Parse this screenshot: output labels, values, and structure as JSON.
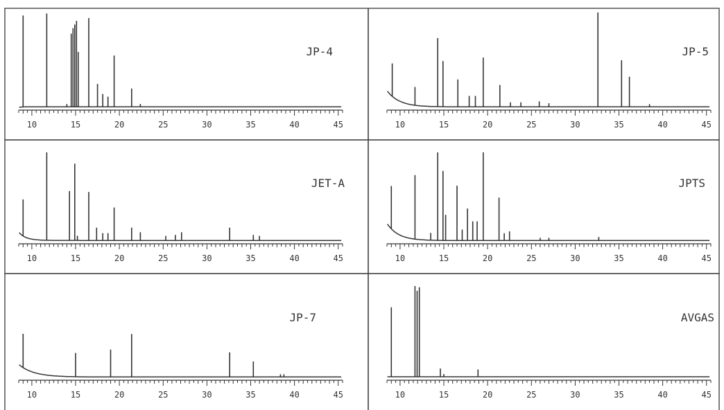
{
  "figure": {
    "colors": {
      "ink": "#333333",
      "frame": "#444444",
      "background": "#ffffff"
    }
  },
  "chart_data": [
    {
      "type": "line",
      "label": "JP-4",
      "xlim": [
        8.5,
        45.5
      ],
      "x_ticks": [
        10,
        15,
        20,
        25,
        30,
        35,
        40,
        45
      ],
      "tick_labels": [
        "10",
        "15",
        "20",
        "25",
        "30",
        "35",
        "40",
        "45"
      ],
      "baseline": {
        "start": 1.8,
        "end": 2.8,
        "decay": 0.6
      },
      "peaks": [
        {
          "x": 9.0,
          "y": 100
        },
        {
          "x": 11.7,
          "y": 102
        },
        {
          "x": 14.0,
          "y": 3
        },
        {
          "x": 14.5,
          "y": 80
        },
        {
          "x": 14.7,
          "y": 86
        },
        {
          "x": 14.9,
          "y": 90
        },
        {
          "x": 15.1,
          "y": 94
        },
        {
          "x": 15.3,
          "y": 60
        },
        {
          "x": 16.5,
          "y": 97
        },
        {
          "x": 17.5,
          "y": 25
        },
        {
          "x": 18.1,
          "y": 14
        },
        {
          "x": 18.7,
          "y": 11
        },
        {
          "x": 19.4,
          "y": 56
        },
        {
          "x": 21.4,
          "y": 20
        },
        {
          "x": 22.4,
          "y": 3
        }
      ]
    },
    {
      "type": "line",
      "label": "JP-5",
      "xlim": [
        8.5,
        45.5
      ],
      "x_ticks": [
        10,
        15,
        20,
        25,
        30,
        35,
        40,
        45
      ],
      "tick_labels": [
        "10",
        "15",
        "20",
        "25",
        "30",
        "35",
        "40",
        "45"
      ],
      "baseline": {
        "start": 38,
        "end": 2.5,
        "decay": 1.4
      },
      "peaks": [
        {
          "x": 9.1,
          "y": 36
        },
        {
          "x": 11.7,
          "y": 20
        },
        {
          "x": 14.3,
          "y": 75
        },
        {
          "x": 14.9,
          "y": 50
        },
        {
          "x": 16.6,
          "y": 30
        },
        {
          "x": 17.9,
          "y": 12
        },
        {
          "x": 18.6,
          "y": 12
        },
        {
          "x": 19.5,
          "y": 54
        },
        {
          "x": 21.4,
          "y": 24
        },
        {
          "x": 22.6,
          "y": 5
        },
        {
          "x": 23.8,
          "y": 5
        },
        {
          "x": 25.9,
          "y": 6
        },
        {
          "x": 27.0,
          "y": 4
        },
        {
          "x": 32.6,
          "y": 106
        },
        {
          "x": 35.3,
          "y": 51
        },
        {
          "x": 36.2,
          "y": 33
        },
        {
          "x": 38.5,
          "y": 3
        }
      ]
    },
    {
      "type": "line",
      "label": "JET-A",
      "xlim": [
        8.5,
        45.5
      ],
      "x_ticks": [
        10,
        15,
        20,
        25,
        30,
        35,
        40,
        45
      ],
      "tick_labels": [
        "10",
        "15",
        "20",
        "25",
        "30",
        "35",
        "40",
        "45"
      ],
      "baseline": {
        "start": 21,
        "end": 2.8,
        "decay": 0.8
      },
      "peaks": [
        {
          "x": 9.0,
          "y": 40
        },
        {
          "x": 11.7,
          "y": 110
        },
        {
          "x": 14.3,
          "y": 54
        },
        {
          "x": 14.9,
          "y": 84
        },
        {
          "x": 15.2,
          "y": 5
        },
        {
          "x": 16.5,
          "y": 53
        },
        {
          "x": 17.4,
          "y": 14
        },
        {
          "x": 18.1,
          "y": 8
        },
        {
          "x": 18.7,
          "y": 8
        },
        {
          "x": 19.4,
          "y": 36
        },
        {
          "x": 21.4,
          "y": 14
        },
        {
          "x": 22.4,
          "y": 9
        },
        {
          "x": 25.3,
          "y": 5
        },
        {
          "x": 26.4,
          "y": 6
        },
        {
          "x": 27.1,
          "y": 9
        },
        {
          "x": 32.6,
          "y": 14
        },
        {
          "x": 35.3,
          "y": 6
        },
        {
          "x": 36.0,
          "y": 5
        }
      ]
    },
    {
      "type": "line",
      "label": "JPTS",
      "xlim": [
        8.5,
        45.5
      ],
      "x_ticks": [
        10,
        15,
        20,
        25,
        30,
        35,
        40,
        45
      ],
      "tick_labels": [
        "10",
        "15",
        "20",
        "25",
        "30",
        "35",
        "40",
        "45"
      ],
      "baseline": {
        "start": 40,
        "end": 2.5,
        "decay": 1.3
      },
      "peaks": [
        {
          "x": 9.0,
          "y": 47
        },
        {
          "x": 11.7,
          "y": 70
        },
        {
          "x": 13.5,
          "y": 8
        },
        {
          "x": 14.3,
          "y": 110
        },
        {
          "x": 14.9,
          "y": 76
        },
        {
          "x": 15.2,
          "y": 28
        },
        {
          "x": 16.5,
          "y": 60
        },
        {
          "x": 17.1,
          "y": 12
        },
        {
          "x": 17.7,
          "y": 35
        },
        {
          "x": 18.3,
          "y": 21
        },
        {
          "x": 18.8,
          "y": 21
        },
        {
          "x": 19.5,
          "y": 110
        },
        {
          "x": 21.3,
          "y": 47
        },
        {
          "x": 21.9,
          "y": 8
        },
        {
          "x": 22.5,
          "y": 10
        },
        {
          "x": 26.0,
          "y": 3
        },
        {
          "x": 27.0,
          "y": 3
        },
        {
          "x": 32.7,
          "y": 4
        }
      ]
    },
    {
      "type": "line",
      "label": "JP-7",
      "xlim": [
        8.5,
        45.5
      ],
      "x_ticks": [
        10,
        15,
        20,
        25,
        30,
        35,
        40,
        45
      ],
      "tick_labels": [
        "10",
        "15",
        "20",
        "25",
        "30",
        "35",
        "40",
        "45"
      ],
      "baseline": {
        "start": 30,
        "end": 2.5,
        "decay": 1.7
      },
      "peaks": [
        {
          "x": 9.0,
          "y": 37
        },
        {
          "x": 15.0,
          "y": 26
        },
        {
          "x": 19.0,
          "y": 30
        },
        {
          "x": 21.4,
          "y": 47
        },
        {
          "x": 32.6,
          "y": 27
        },
        {
          "x": 35.3,
          "y": 17
        },
        {
          "x": 38.4,
          "y": 3
        },
        {
          "x": 38.8,
          "y": 3
        }
      ]
    },
    {
      "type": "line",
      "label": "AVGAS",
      "xlim": [
        8.5,
        45.5
      ],
      "x_ticks": [
        10,
        15,
        20,
        25,
        30,
        35,
        40,
        45
      ],
      "tick_labels": [
        "10",
        "15",
        "20",
        "25",
        "30",
        "35",
        "40",
        "45"
      ],
      "baseline": {
        "start": 3,
        "end": 3,
        "decay": 1.0
      },
      "peaks": [
        {
          "x": 9.0,
          "y": 76
        },
        {
          "x": 11.7,
          "y": 102
        },
        {
          "x": 11.95,
          "y": 94
        },
        {
          "x": 12.2,
          "y": 98
        },
        {
          "x": 14.6,
          "y": 9
        },
        {
          "x": 15.0,
          "y": 3
        },
        {
          "x": 18.9,
          "y": 8
        }
      ]
    }
  ]
}
